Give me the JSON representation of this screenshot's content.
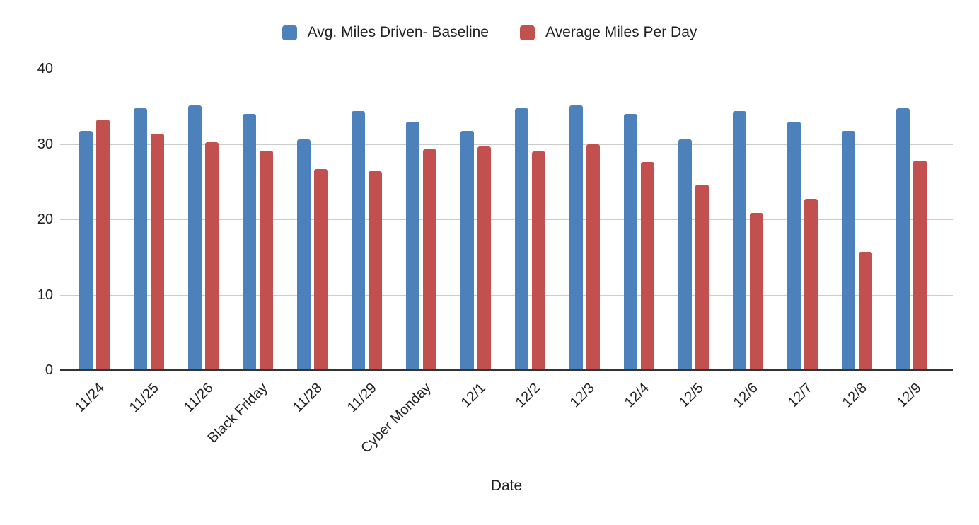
{
  "legend": {
    "items": [
      {
        "label": "Avg. Miles Driven- Baseline",
        "color": "#4d81bc"
      },
      {
        "label": "Average Miles Per Day",
        "color": "#c1504e"
      }
    ]
  },
  "axes": {
    "x_title": "Date",
    "y_tick_labels": [
      "40",
      "30",
      "20",
      "10",
      "0"
    ]
  },
  "chart_data": {
    "type": "bar",
    "title": "",
    "xlabel": "Date",
    "ylabel": "",
    "ylim": [
      0,
      40
    ],
    "y_ticks": [
      0,
      10,
      20,
      30,
      40
    ],
    "grid": true,
    "legend_position": "top",
    "categories": [
      "11/24",
      "11/25",
      "11/26",
      "Black Friday",
      "11/28",
      "11/29",
      "Cyber Monday",
      "12/1",
      "12/2",
      "12/3",
      "12/4",
      "12/5",
      "12/6",
      "12/7",
      "12/8",
      "12/9"
    ],
    "series": [
      {
        "name": "Avg. Miles Driven- Baseline",
        "color": "#4d81bc",
        "values": [
          31.7,
          34.7,
          35.1,
          34.0,
          30.6,
          34.4,
          33.0,
          31.7,
          34.7,
          35.1,
          34.0,
          30.6,
          34.4,
          33.0,
          31.7,
          34.7
        ]
      },
      {
        "name": "Average Miles Per Day",
        "color": "#c1504e",
        "values": [
          33.2,
          31.4,
          30.2,
          29.1,
          26.7,
          26.4,
          29.3,
          29.7,
          29.0,
          30.0,
          27.6,
          24.6,
          20.8,
          22.7,
          15.7,
          27.8
        ]
      }
    ]
  }
}
